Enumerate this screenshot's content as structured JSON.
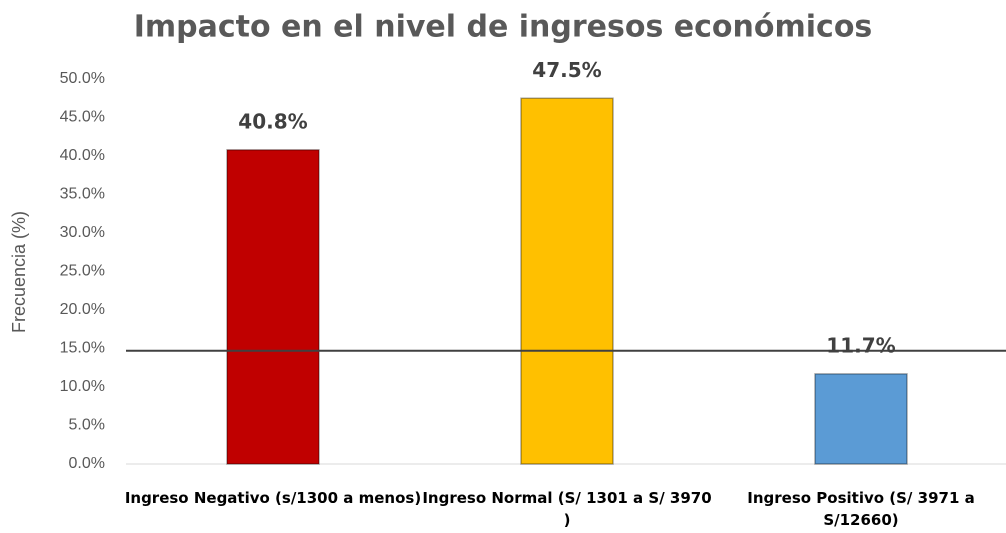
{
  "chart_data": {
    "type": "bar",
    "title": "Impacto en el nivel de ingresos económicos",
    "y_label": "Frecuencia (%)",
    "categories": [
      "Ingreso Negativo (s/1300 a menos)",
      "Ingreso Normal (S/ 1301 a S/ 3970 )",
      "Ingreso Positivo (S/ 3971 a S/12660)"
    ],
    "values": [
      40.8,
      47.5,
      11.7
    ],
    "value_labels": [
      "40.8%",
      "47.5%",
      "11.7%"
    ],
    "colors": [
      "#c00000",
      "#ffc000",
      "#5b9bd5"
    ],
    "ylim": [
      0,
      50
    ],
    "yticks": [
      {
        "value": 0,
        "label": "0.0%"
      },
      {
        "value": 5,
        "label": "5.0%"
      },
      {
        "value": 10,
        "label": "10.0%"
      },
      {
        "value": 15,
        "label": "15.0%"
      },
      {
        "value": 20,
        "label": "20.0%"
      },
      {
        "value": 25,
        "label": "25.0%"
      },
      {
        "value": 30,
        "label": "30.0%"
      },
      {
        "value": 35,
        "label": "35.0%"
      },
      {
        "value": 40,
        "label": "40.0%"
      },
      {
        "value": 45,
        "label": "45.0%"
      },
      {
        "value": 50,
        "label": "50.0%"
      }
    ],
    "reference_line": {
      "value": 14.7,
      "color": "#404040"
    },
    "grid": false
  }
}
